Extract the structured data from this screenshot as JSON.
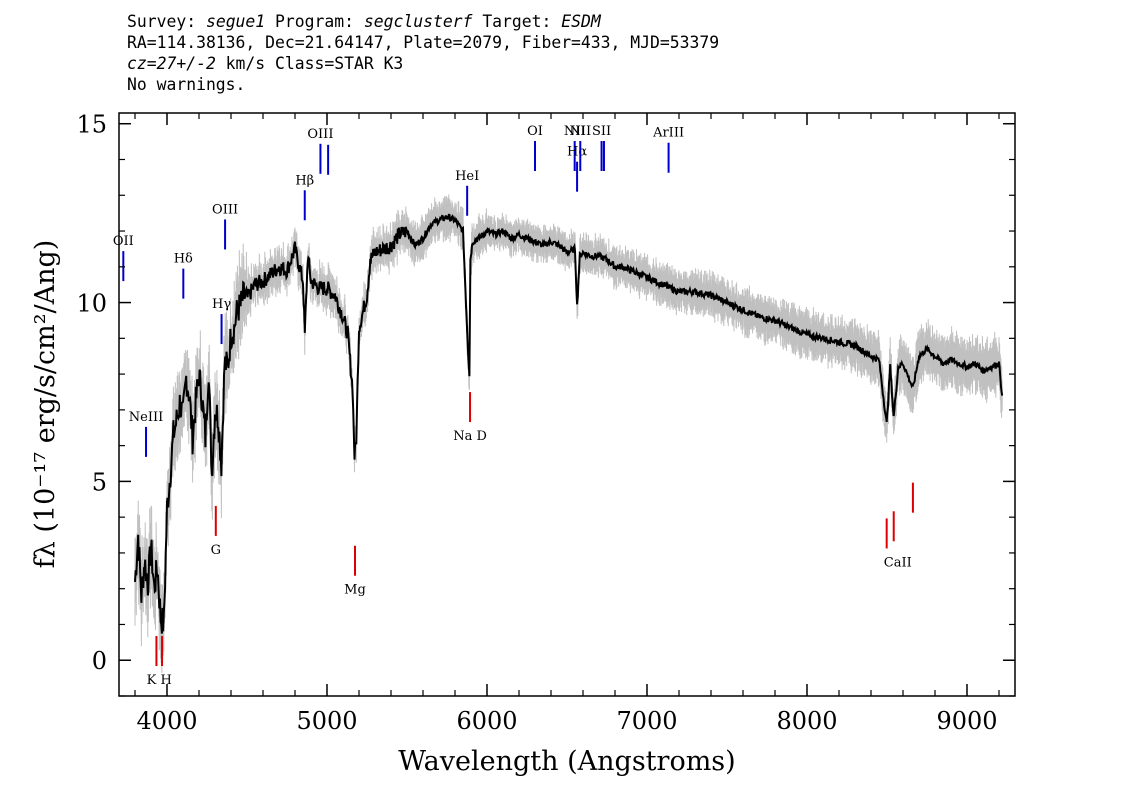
{
  "header": {
    "survey_label": "Survey:",
    "survey": "segue1",
    "program_label": "Program:",
    "program": "segclusterf",
    "target_label": "Target:",
    "target": "ESDM",
    "line2": "RA=114.38136, Dec=21.64147, Plate=2079, Fiber=433, MJD=53379",
    "cz_label": "cz=27+/-2",
    "cz_rest": " km/s Class=STAR K3",
    "line4": "No warnings."
  },
  "chart_data": {
    "type": "line",
    "xlabel": "Wavelength (Angstroms)",
    "ylabel": "fλ (10⁻¹⁷ erg/s/cm²/Ang)",
    "xlim": [
      3700,
      9300
    ],
    "ylim": [
      -1,
      15.3
    ],
    "xticks": [
      4000,
      5000,
      6000,
      7000,
      8000,
      9000
    ],
    "yticks": [
      0,
      5,
      10,
      15
    ],
    "x_minor_step": 200,
    "y_minor_step": 1,
    "grid": false,
    "colors": {
      "flux": "#000000",
      "error": "#c0c0c0",
      "emission": "#0000cc",
      "absorption": "#dd0000"
    },
    "series": [
      {
        "x": [
          3800,
          3820,
          3840,
          3860,
          3880,
          3900,
          3920,
          3940,
          3960,
          3980,
          4000,
          4020,
          4040,
          4060,
          4080,
          4100,
          4120,
          4140,
          4160,
          4180,
          4200,
          4220,
          4240,
          4260,
          4280,
          4300,
          4320,
          4340,
          4360,
          4380,
          4400,
          4420,
          4440,
          4460,
          4480,
          4500,
          4550,
          4600,
          4650,
          4700,
          4750,
          4800,
          4850,
          4861,
          4880,
          4900,
          4950,
          5000,
          5050,
          5100,
          5130,
          5160,
          5172,
          5183,
          5200,
          5250,
          5270,
          5300,
          5350,
          5400,
          5450,
          5500,
          5550,
          5600,
          5650,
          5700,
          5750,
          5800,
          5850,
          5880,
          5890,
          5896,
          5910,
          5950,
          6000,
          6050,
          6100,
          6150,
          6200,
          6250,
          6300,
          6350,
          6400,
          6450,
          6500,
          6550,
          6563,
          6580,
          6600,
          6650,
          6700,
          6750,
          6800,
          6850,
          6900,
          6950,
          7000,
          7100,
          7200,
          7300,
          7400,
          7500,
          7600,
          7700,
          7800,
          7900,
          8000,
          8100,
          8200,
          8300,
          8400,
          8450,
          8498,
          8520,
          8542,
          8570,
          8600,
          8662,
          8700,
          8750,
          8800,
          8850,
          8900,
          8950,
          9000,
          9050,
          9100,
          9150,
          9200,
          9220
        ],
        "y": [
          2.2,
          3.5,
          1.8,
          2.8,
          2.1,
          3.2,
          2.0,
          2.6,
          1.2,
          1.0,
          4.2,
          5.2,
          6.3,
          6.7,
          7.2,
          6.8,
          7.9,
          7.4,
          6.2,
          7.2,
          8.0,
          7.3,
          6.2,
          8.2,
          5.2,
          7.0,
          6.8,
          5.5,
          8.3,
          8.2,
          9.1,
          9.3,
          9.8,
          9.9,
          10.2,
          10.1,
          10.5,
          10.6,
          10.8,
          11.0,
          10.9,
          11.5,
          10.6,
          9.1,
          11.3,
          10.6,
          10.4,
          10.4,
          10.2,
          9.6,
          9.1,
          7.6,
          5.7,
          6.2,
          9.3,
          10.2,
          11.2,
          11.4,
          11.5,
          11.6,
          11.9,
          12.0,
          11.6,
          11.8,
          12.2,
          12.3,
          12.4,
          12.3,
          12.0,
          8.8,
          8.0,
          11.2,
          11.7,
          11.8,
          12.0,
          11.9,
          12.0,
          11.8,
          11.9,
          11.8,
          11.7,
          11.6,
          11.7,
          11.6,
          11.4,
          11.5,
          9.9,
          11.3,
          11.4,
          11.3,
          11.3,
          11.2,
          11.0,
          11.0,
          10.9,
          10.8,
          10.7,
          10.5,
          10.3,
          10.3,
          10.2,
          10.0,
          9.8,
          9.6,
          9.5,
          9.3,
          9.1,
          9.0,
          8.9,
          8.8,
          8.5,
          8.4,
          6.6,
          8.2,
          6.8,
          8.2,
          8.3,
          7.6,
          8.5,
          8.7,
          8.5,
          8.3,
          8.4,
          8.3,
          8.2,
          8.3,
          8.1,
          8.2,
          8.3,
          7.4
        ]
      }
    ],
    "line_markers": [
      {
        "label": "OII",
        "x": 3727,
        "kind": "emission"
      },
      {
        "label": "NeIII",
        "x": 3869,
        "kind": "emission"
      },
      {
        "label": "Hδ",
        "x": 4102,
        "kind": "emission"
      },
      {
        "label": "Hγ",
        "x": 4341,
        "kind": "emission"
      },
      {
        "label": "OIII",
        "x": 4363,
        "kind": "emission"
      },
      {
        "label": "Hβ",
        "x": 4861,
        "kind": "emission"
      },
      {
        "label": "OIII",
        "x": 4959,
        "kind": "emission"
      },
      {
        "label": "OIII",
        "x": 5007,
        "kind": "emission"
      },
      {
        "label": "HeI",
        "x": 5876,
        "kind": "emission"
      },
      {
        "label": "OI",
        "x": 6300,
        "kind": "emission"
      },
      {
        "label": "NII",
        "x": 6548,
        "kind": "emission"
      },
      {
        "label": "Hα",
        "x": 6563,
        "kind": "emission"
      },
      {
        "label": "NII",
        "x": 6583,
        "kind": "emission"
      },
      {
        "label": "SII",
        "x": 6716,
        "kind": "emission"
      },
      {
        "label": "SII",
        "x": 6731,
        "kind": "emission"
      },
      {
        "label": "ArIII",
        "x": 7135,
        "kind": "emission"
      },
      {
        "label": "K",
        "x": 3934,
        "kind": "absorption"
      },
      {
        "label": "H",
        "x": 3969,
        "kind": "absorption"
      },
      {
        "label": "G",
        "x": 4305,
        "kind": "absorption"
      },
      {
        "label": "Mg",
        "x": 5175,
        "kind": "absorption"
      },
      {
        "label": "Na D",
        "x": 5894,
        "kind": "absorption"
      },
      {
        "label": "CaII",
        "x": 8498,
        "kind": "absorption"
      },
      {
        "label": "CaII",
        "x": 8542,
        "kind": "absorption"
      },
      {
        "label": "CaII",
        "x": 8662,
        "kind": "absorption"
      }
    ]
  }
}
